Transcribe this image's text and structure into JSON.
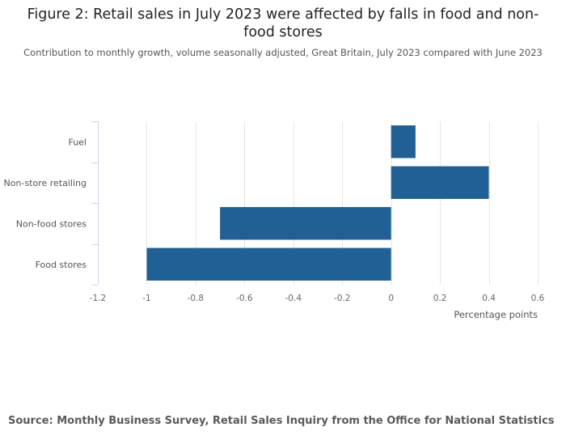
{
  "title": "Figure 2: Retail sales in July 2023 were affected by falls in food and non-food stores",
  "subtitle": "Contribution to monthly growth, volume seasonally adjusted, Great Britain, July 2023 compared with June 2023",
  "source": "Source: Monthly Business Survey, Retail Sales Inquiry from the Office for National Statistics",
  "colors": {
    "bar": "#206095",
    "grid": "#e6e6e6",
    "axis": "#ccd6eb"
  },
  "chart_data": {
    "type": "bar",
    "orientation": "horizontal",
    "categories": [
      "Fuel",
      "Non-store retailing",
      "Non-food stores",
      "Food stores"
    ],
    "values": [
      0.1,
      0.4,
      -0.7,
      -1.0
    ],
    "xlabel": "Percentage points",
    "ylabel": "",
    "xlim": [
      -1.2,
      0.6
    ],
    "xticks": [
      -1.2,
      -1,
      -0.8,
      -0.6,
      -0.4,
      -0.2,
      0,
      0.2,
      0.4,
      0.6
    ],
    "xtick_labels": [
      "-1.2",
      "-1",
      "-0.8",
      "-0.6",
      "-0.4",
      "-0.2",
      "0",
      "0.2",
      "0.4",
      "0.6"
    ]
  }
}
